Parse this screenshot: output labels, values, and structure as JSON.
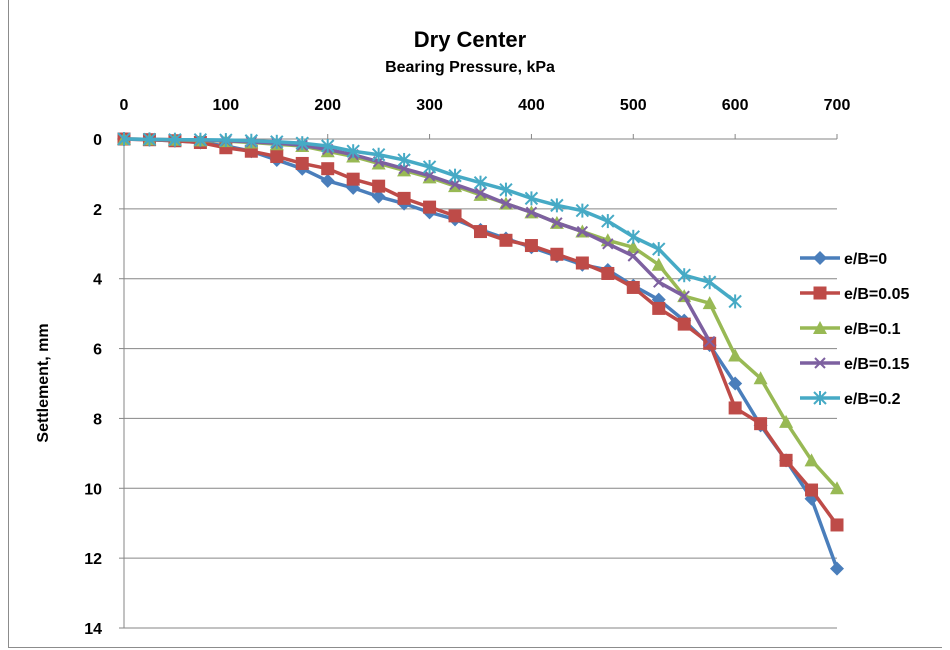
{
  "chart_data": {
    "type": "line",
    "title": "Dry Center",
    "xlabel": "Bearing Pressure, kPa",
    "ylabel": "Settlement, mm",
    "xlim": [
      0,
      700
    ],
    "ylim": [
      0,
      14
    ],
    "y_inverted": true,
    "x_axis_position": "top",
    "x_ticks": [
      "0",
      "100",
      "200",
      "300",
      "400",
      "500",
      "600",
      "700"
    ],
    "y_ticks": [
      "0",
      "2",
      "4",
      "6",
      "8",
      "10",
      "12",
      "14"
    ],
    "grid": "horizontal",
    "legend_position": "right",
    "series": [
      {
        "name": "e/B=0",
        "color": "#4a7ebb",
        "marker": "diamond",
        "x": [
          0,
          25,
          50,
          75,
          100,
          125,
          150,
          175,
          200,
          225,
          250,
          275,
          300,
          325,
          350,
          375,
          400,
          425,
          450,
          475,
          500,
          525,
          550,
          575,
          600,
          625,
          650,
          675,
          700
        ],
        "y": [
          0,
          0.02,
          0.05,
          0.1,
          0.2,
          0.35,
          0.6,
          0.85,
          1.2,
          1.4,
          1.65,
          1.85,
          2.1,
          2.3,
          2.6,
          2.85,
          3.1,
          3.35,
          3.6,
          3.75,
          4.2,
          4.6,
          5.2,
          5.9,
          7.0,
          8.2,
          9.2,
          10.3,
          12.3
        ]
      },
      {
        "name": "e/B=0.05",
        "color": "#be4b48",
        "marker": "square",
        "x": [
          0,
          25,
          50,
          75,
          100,
          125,
          150,
          175,
          200,
          225,
          250,
          275,
          300,
          325,
          350,
          375,
          400,
          425,
          450,
          475,
          500,
          525,
          550,
          575,
          600,
          625,
          650,
          675,
          700
        ],
        "y": [
          0,
          0.02,
          0.05,
          0.1,
          0.25,
          0.35,
          0.5,
          0.7,
          0.85,
          1.15,
          1.35,
          1.7,
          1.95,
          2.2,
          2.65,
          2.9,
          3.05,
          3.3,
          3.55,
          3.85,
          4.25,
          4.85,
          5.3,
          5.85,
          7.7,
          8.15,
          9.2,
          10.05,
          11.05
        ]
      },
      {
        "name": "e/B=0.1",
        "color": "#98b954",
        "marker": "triangle",
        "x": [
          0,
          25,
          50,
          75,
          100,
          125,
          150,
          175,
          200,
          225,
          250,
          275,
          300,
          325,
          350,
          375,
          400,
          425,
          450,
          475,
          500,
          525,
          550,
          575,
          600,
          625,
          650,
          675,
          700
        ],
        "y": [
          0,
          0.01,
          0.02,
          0.04,
          0.06,
          0.1,
          0.15,
          0.2,
          0.35,
          0.5,
          0.7,
          0.9,
          1.1,
          1.35,
          1.6,
          1.85,
          2.1,
          2.4,
          2.65,
          2.9,
          3.1,
          3.6,
          4.5,
          4.7,
          6.2,
          6.85,
          8.1,
          9.2,
          10.0
        ]
      },
      {
        "name": "e/B=0.15",
        "color": "#7d60a0",
        "marker": "x",
        "x": [
          0,
          25,
          50,
          75,
          100,
          125,
          150,
          175,
          200,
          225,
          250,
          275,
          300,
          325,
          350,
          375,
          400,
          425,
          450,
          475,
          500,
          525,
          550,
          575
        ],
        "y": [
          0,
          0.01,
          0.02,
          0.03,
          0.05,
          0.08,
          0.12,
          0.18,
          0.3,
          0.45,
          0.65,
          0.85,
          1.05,
          1.3,
          1.55,
          1.85,
          2.1,
          2.4,
          2.65,
          3.0,
          3.35,
          4.1,
          4.5,
          5.8
        ]
      },
      {
        "name": "e/B=0.2",
        "color": "#46aac5",
        "marker": "star",
        "x": [
          0,
          25,
          50,
          75,
          100,
          125,
          150,
          175,
          200,
          225,
          250,
          275,
          300,
          325,
          350,
          375,
          400,
          425,
          450,
          475,
          500,
          525,
          550,
          575,
          600
        ],
        "y": [
          0,
          0.01,
          0.02,
          0.02,
          0.03,
          0.05,
          0.08,
          0.12,
          0.2,
          0.35,
          0.45,
          0.6,
          0.8,
          1.05,
          1.25,
          1.45,
          1.7,
          1.9,
          2.05,
          2.35,
          2.8,
          3.15,
          3.9,
          4.1,
          4.65
        ]
      }
    ]
  }
}
